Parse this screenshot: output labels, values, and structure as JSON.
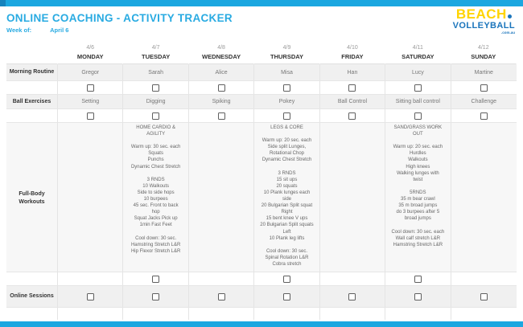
{
  "colors": {
    "topbar": "#1ba7e0",
    "title_blue": "#29abe2",
    "logo_yellow": "#ffd400",
    "logo_blue": "#1b75bc"
  },
  "page": {
    "title": "ONLINE COACHING - ACTIVITY TRACKER",
    "week_of_label": "Week of:",
    "week_of_value": "April 6"
  },
  "logo": {
    "top": "BEACH",
    "bottom": "VOLLEYBALL",
    "domain": ".com.au"
  },
  "row_labels": {
    "morning_routine": "Morning Routine",
    "ball_exercises": "Ball Exercises",
    "full_body": "Full-Body Workouts",
    "online_sessions": "Online Sessions"
  },
  "days": [
    {
      "date": "4/6",
      "name": "MONDAY",
      "routine": "Gregor",
      "ball": "Setting",
      "workout": ""
    },
    {
      "date": "4/7",
      "name": "TUESDAY",
      "routine": "Sarah",
      "ball": "Digging",
      "workout": "HOME CARDIO &\nAGILITY\n\nWarm up: 30 sec. each\nSquats\nPunchs\nDynamic Chest Stretch\n\n3 RNDS\n10 Walkouts\nSide to side hops\n10 burpees\n45 sec. Front to back\nhop\nSquat Jacks Pick up\n1min Fast Feet\n\nCool down: 30 sec.\nHamstring Stretch L&R\nHip Flexor Stretch L&R"
    },
    {
      "date": "4/8",
      "name": "WEDNESDAY",
      "routine": "Alice",
      "ball": "Spiking",
      "workout": ""
    },
    {
      "date": "4/9",
      "name": "THURSDAY",
      "routine": "Misa",
      "ball": "Pokey",
      "workout": "LEGS & CORE\n\nWarm up: 20 sec. each\nSide split Lunges,\nRotational Chop\nDynamic Chest Stretch\n\n3 RNDS\n15 sit ups\n20 squats\n10 Plank lunges each\nside\n20 Bulgarian Split squat\nRight\n15 bent knee V ups\n20 Bulgarian Split squats\nLeft\n10 Plank leg lifts\n\nCool down: 30 sec.\nSpinal Rotation L&R\nCobra stretch"
    },
    {
      "date": "4/10",
      "name": "FRIDAY",
      "routine": "Han",
      "ball": "Ball Control",
      "workout": ""
    },
    {
      "date": "4/11",
      "name": "SATURDAY",
      "routine": "Lucy",
      "ball": "Sitting ball control",
      "workout": "SAND/GRASS WORK\nOUT\n\nWarm up: 20 sec. each\nHurdles\nWalkouts\nHigh knees\nWalking lunges with\ntwist\n\n5RNDS\n35 m bear crawl\n35 m broad jumps\ndo 3 burpees after 5\nbroad jumps\n\nCool down: 30 sec. each\nWall calf stretch L&R\nHamstring Stretch L&R"
    },
    {
      "date": "4/12",
      "name": "SUNDAY",
      "routine": "Martine",
      "ball": "Challenge",
      "workout": ""
    }
  ],
  "checkboxes": {
    "morning_routine": [
      false,
      false,
      false,
      false,
      false,
      false,
      false
    ],
    "ball_exercises": [
      false,
      false,
      false,
      false,
      false,
      false,
      false
    ],
    "full_body": [
      null,
      false,
      null,
      false,
      null,
      false,
      null
    ],
    "online_sessions": [
      false,
      false,
      false,
      false,
      false,
      false,
      false
    ]
  }
}
